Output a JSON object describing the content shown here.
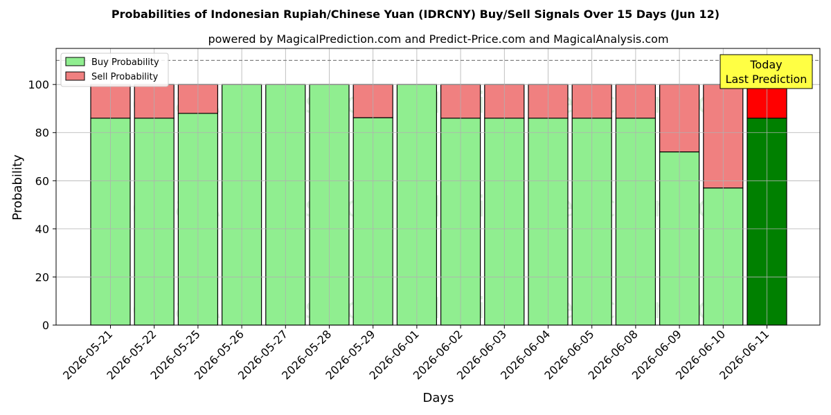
{
  "chart_data": {
    "type": "bar",
    "stacked": true,
    "title": "Probabilities of Indonesian Rupiah/Chinese Yuan (IDRCNY) Buy/Sell Signals Over 15 Days (Jun 12)",
    "subtitle": "powered by MagicalPrediction.com and Predict-Price.com and MagicalAnalysis.com",
    "xlabel": "Days",
    "ylabel": "Probability",
    "ylim": [
      0,
      115
    ],
    "yticks": [
      0,
      20,
      40,
      60,
      80,
      100
    ],
    "grid": true,
    "legend_position": "top-left",
    "reference_line": 110,
    "categories": [
      "2026-05-21",
      "2026-05-22",
      "2026-05-25",
      "2026-05-26",
      "2026-05-27",
      "2026-05-28",
      "2026-05-29",
      "2026-06-01",
      "2026-06-02",
      "2026-06-03",
      "2026-06-04",
      "2026-06-05",
      "2026-06-08",
      "2026-06-09",
      "2026-06-10",
      "2026-06-11"
    ],
    "series": [
      {
        "name": "Buy Probability",
        "color": "#90ee90",
        "highlight_color": "#008000",
        "values": [
          86,
          86,
          88,
          100,
          100,
          100,
          86.2,
          100,
          86,
          86,
          86,
          86,
          86,
          72,
          57,
          86
        ]
      },
      {
        "name": "Sell Probability",
        "color": "#f08080",
        "highlight_color": "#ff0000",
        "values": [
          14,
          14,
          12,
          0,
          0,
          0,
          13.8,
          0,
          14,
          14,
          14,
          14,
          14,
          28,
          43,
          14
        ]
      }
    ],
    "annotation": {
      "lines": [
        "Today",
        "Last Prediction"
      ],
      "bar_index": 15,
      "color": "#ffff44"
    },
    "watermarks": [
      "MagicalAnalysis.com",
      "MagicalPrediction.com"
    ]
  }
}
